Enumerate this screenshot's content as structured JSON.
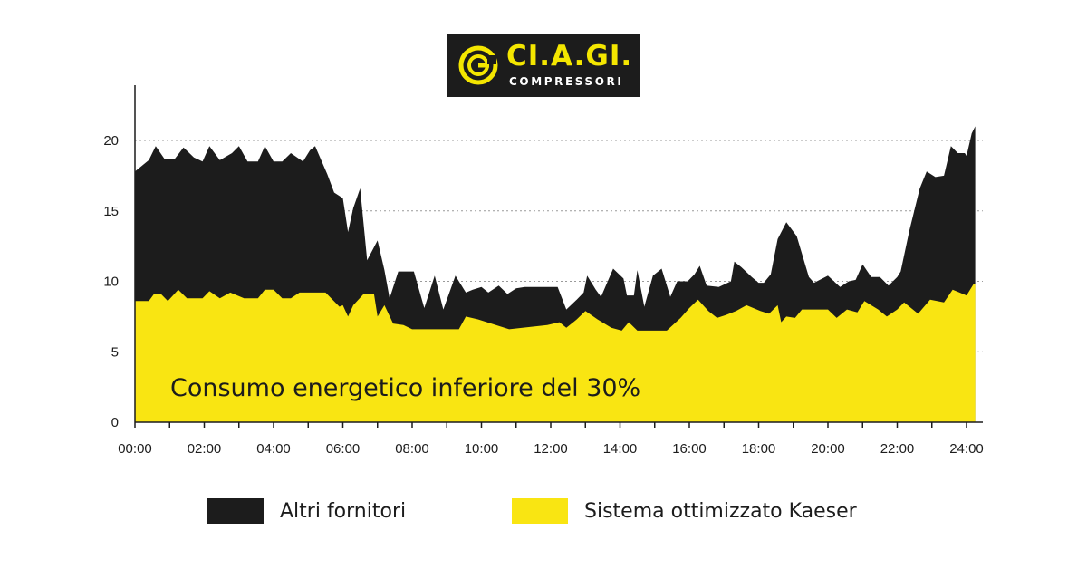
{
  "logo": {
    "brand": "CI.A.GI.",
    "subtitle": "COMPRESSORI",
    "icon": "ciagi-g-logo-icon",
    "bg_color": "#1c1c1c",
    "accent_color": "#f4e600"
  },
  "chart_data": {
    "type": "area",
    "title": "",
    "xlabel": "",
    "ylabel": "",
    "annotation": "Consumo energetico inferiore del 30%",
    "x_tick_labels": [
      "00:00",
      "02:00",
      "04:00",
      "06:00",
      "08:00",
      "10:00",
      "12:00",
      "14:00",
      "16:00",
      "18:00",
      "20:00",
      "22:00",
      "24:00"
    ],
    "y_ticks": [
      0,
      5,
      10,
      15,
      20
    ],
    "xlim": [
      0,
      24
    ],
    "ylim": [
      0,
      24
    ],
    "grid": "horizontal dotted",
    "legend_position": "bottom",
    "series": [
      {
        "name": "Altri fornitori",
        "color": "#1c1c1c",
        "points": [
          [
            0,
            17.8
          ],
          [
            0.4,
            18.6
          ],
          [
            0.6,
            19.6
          ],
          [
            0.85,
            18.7
          ],
          [
            1.15,
            18.7
          ],
          [
            1.4,
            19.5
          ],
          [
            1.7,
            18.8
          ],
          [
            1.95,
            18.5
          ],
          [
            2.15,
            19.6
          ],
          [
            2.45,
            18.6
          ],
          [
            2.8,
            19.1
          ],
          [
            3.0,
            19.6
          ],
          [
            3.25,
            18.5
          ],
          [
            3.55,
            18.5
          ],
          [
            3.75,
            19.6
          ],
          [
            4.0,
            18.5
          ],
          [
            4.25,
            18.5
          ],
          [
            4.5,
            19.1
          ],
          [
            4.85,
            18.5
          ],
          [
            5.05,
            19.3
          ],
          [
            5.2,
            19.6
          ],
          [
            5.55,
            17.6
          ],
          [
            5.75,
            16.3
          ],
          [
            6.0,
            15.9
          ],
          [
            6.15,
            13.5
          ],
          [
            6.3,
            15.2
          ],
          [
            6.5,
            16.6
          ],
          [
            6.7,
            11.5
          ],
          [
            7.0,
            12.9
          ],
          [
            7.2,
            10.8
          ],
          [
            7.35,
            8.8
          ],
          [
            7.6,
            10.7
          ],
          [
            8.05,
            10.7
          ],
          [
            8.35,
            8.1
          ],
          [
            8.65,
            10.4
          ],
          [
            8.9,
            8.0
          ],
          [
            9.25,
            10.4
          ],
          [
            9.55,
            9.2
          ],
          [
            9.75,
            9.4
          ],
          [
            10.0,
            9.6
          ],
          [
            10.2,
            9.2
          ],
          [
            10.5,
            9.7
          ],
          [
            10.75,
            9.1
          ],
          [
            11.0,
            9.5
          ],
          [
            11.25,
            9.6
          ],
          [
            12.2,
            9.6
          ],
          [
            12.45,
            8.0
          ],
          [
            12.75,
            8.7
          ],
          [
            12.95,
            9.2
          ],
          [
            13.05,
            10.4
          ],
          [
            13.3,
            9.4
          ],
          [
            13.45,
            8.9
          ],
          [
            13.8,
            10.9
          ],
          [
            14.1,
            10.2
          ],
          [
            14.2,
            9.0
          ],
          [
            14.4,
            9.0
          ],
          [
            14.5,
            10.8
          ],
          [
            14.7,
            8.2
          ],
          [
            14.95,
            10.4
          ],
          [
            15.2,
            10.9
          ],
          [
            15.45,
            8.9
          ],
          [
            15.65,
            10.0
          ],
          [
            15.95,
            10.0
          ],
          [
            16.15,
            10.5
          ],
          [
            16.3,
            11.1
          ],
          [
            16.5,
            9.7
          ],
          [
            16.85,
            9.6
          ],
          [
            17.2,
            10.0
          ],
          [
            17.3,
            11.4
          ],
          [
            17.5,
            11.0
          ],
          [
            17.8,
            10.3
          ],
          [
            18.0,
            9.9
          ],
          [
            18.15,
            9.9
          ],
          [
            18.35,
            10.5
          ],
          [
            18.55,
            13.0
          ],
          [
            18.8,
            14.2
          ],
          [
            19.1,
            13.2
          ],
          [
            19.45,
            10.3
          ],
          [
            19.6,
            9.9
          ],
          [
            20.0,
            10.4
          ],
          [
            20.35,
            9.6
          ],
          [
            20.6,
            10.0
          ],
          [
            20.8,
            10.1
          ],
          [
            21.0,
            11.2
          ],
          [
            21.25,
            10.3
          ],
          [
            21.5,
            10.3
          ],
          [
            21.75,
            9.7
          ],
          [
            22.0,
            10.3
          ],
          [
            22.1,
            10.7
          ],
          [
            22.35,
            13.6
          ],
          [
            22.65,
            16.6
          ],
          [
            22.85,
            17.8
          ],
          [
            23.1,
            17.4
          ],
          [
            23.35,
            17.5
          ],
          [
            23.55,
            19.6
          ],
          [
            23.75,
            19.1
          ],
          [
            23.95,
            19.1
          ],
          [
            24.0,
            18.9
          ],
          [
            24.15,
            20.5
          ],
          [
            24.25,
            21.0
          ]
        ]
      },
      {
        "name": "Sistema ottimizzato Kaeser",
        "color": "#f9e512",
        "points": [
          [
            0,
            8.6
          ],
          [
            0.4,
            8.6
          ],
          [
            0.55,
            9.1
          ],
          [
            0.75,
            9.1
          ],
          [
            0.95,
            8.6
          ],
          [
            1.25,
            9.4
          ],
          [
            1.5,
            8.8
          ],
          [
            1.95,
            8.8
          ],
          [
            2.15,
            9.3
          ],
          [
            2.45,
            8.8
          ],
          [
            2.75,
            9.2
          ],
          [
            3.15,
            8.8
          ],
          [
            3.55,
            8.8
          ],
          [
            3.75,
            9.4
          ],
          [
            4.0,
            9.4
          ],
          [
            4.25,
            8.8
          ],
          [
            4.5,
            8.8
          ],
          [
            4.75,
            9.2
          ],
          [
            5.5,
            9.2
          ],
          [
            5.9,
            8.2
          ],
          [
            6.0,
            8.3
          ],
          [
            6.15,
            7.5
          ],
          [
            6.3,
            8.3
          ],
          [
            6.6,
            9.1
          ],
          [
            6.9,
            9.1
          ],
          [
            7.0,
            7.5
          ],
          [
            7.2,
            8.3
          ],
          [
            7.45,
            7.0
          ],
          [
            7.75,
            6.9
          ],
          [
            8.0,
            6.6
          ],
          [
            8.3,
            6.6
          ],
          [
            9.0,
            6.6
          ],
          [
            9.35,
            6.6
          ],
          [
            9.55,
            7.5
          ],
          [
            9.9,
            7.3
          ],
          [
            10.8,
            6.6
          ],
          [
            11.9,
            6.9
          ],
          [
            12.25,
            7.1
          ],
          [
            12.45,
            6.7
          ],
          [
            12.75,
            7.3
          ],
          [
            13.0,
            7.9
          ],
          [
            13.35,
            7.3
          ],
          [
            13.75,
            6.7
          ],
          [
            14.05,
            6.5
          ],
          [
            14.25,
            7.1
          ],
          [
            14.5,
            6.5
          ],
          [
            14.65,
            6.5
          ],
          [
            15.15,
            6.5
          ],
          [
            15.35,
            6.5
          ],
          [
            15.75,
            7.4
          ],
          [
            16.0,
            8.1
          ],
          [
            16.25,
            8.7
          ],
          [
            16.55,
            7.9
          ],
          [
            16.8,
            7.4
          ],
          [
            17.05,
            7.6
          ],
          [
            17.35,
            7.9
          ],
          [
            17.65,
            8.3
          ],
          [
            18.05,
            7.9
          ],
          [
            18.3,
            7.7
          ],
          [
            18.55,
            8.3
          ],
          [
            18.65,
            7.1
          ],
          [
            18.8,
            7.5
          ],
          [
            19.05,
            7.4
          ],
          [
            19.25,
            8.0
          ],
          [
            19.5,
            8.0
          ],
          [
            20.0,
            8.0
          ],
          [
            20.25,
            7.4
          ],
          [
            20.55,
            8.0
          ],
          [
            20.85,
            7.8
          ],
          [
            21.05,
            8.6
          ],
          [
            21.45,
            8.0
          ],
          [
            21.7,
            7.5
          ],
          [
            22.0,
            8.0
          ],
          [
            22.2,
            8.5
          ],
          [
            22.4,
            8.1
          ],
          [
            22.6,
            7.7
          ],
          [
            22.95,
            8.7
          ],
          [
            23.15,
            8.6
          ],
          [
            23.35,
            8.5
          ],
          [
            23.6,
            9.4
          ],
          [
            23.8,
            9.2
          ],
          [
            24.0,
            9.0
          ],
          [
            24.2,
            9.8
          ],
          [
            24.25,
            9.8
          ]
        ]
      }
    ]
  }
}
